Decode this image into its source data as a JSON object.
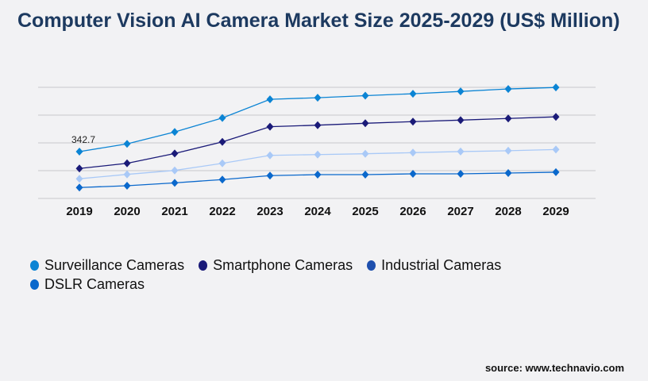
{
  "chart_data": {
    "type": "line",
    "title": "Computer Vision AI Camera Market Size 2025-2029 (US$ Million)",
    "xlabel": "",
    "ylabel": "",
    "categories": [
      "2019",
      "2020",
      "2021",
      "2022",
      "2023",
      "2024",
      "2025",
      "2026",
      "2027",
      "2028",
      "2029"
    ],
    "ylim": [
      0,
      813
    ],
    "grid": true,
    "legend_position": "bottom",
    "series": [
      {
        "name": "Surveillance Cameras",
        "color": "#0b84d4",
        "values": [
          342.7,
          399,
          486,
          589,
          725,
          737,
          752,
          766,
          783,
          801,
          812
        ]
      },
      {
        "name": "Smartphone Cameras",
        "color": "#1a1a78",
        "values": [
          219,
          257,
          329,
          414,
          525,
          536,
          550,
          562,
          573,
          585,
          597
        ]
      },
      {
        "name": "Industrial Cameras",
        "color": "#a9c9f7",
        "legend_color": "#1e4fae",
        "values": [
          144,
          176,
          205,
          257,
          315,
          321,
          327,
          335,
          343,
          349,
          358
        ]
      },
      {
        "name": "DSLR Cameras",
        "color": "#0a68cc",
        "values": [
          80,
          93,
          114,
          138,
          167,
          174,
          174,
          180,
          180,
          186,
          192
        ]
      }
    ],
    "annotations": [
      {
        "series": 0,
        "category": "2019",
        "text": "342.7"
      }
    ]
  },
  "source": "source: www.technavio.com"
}
